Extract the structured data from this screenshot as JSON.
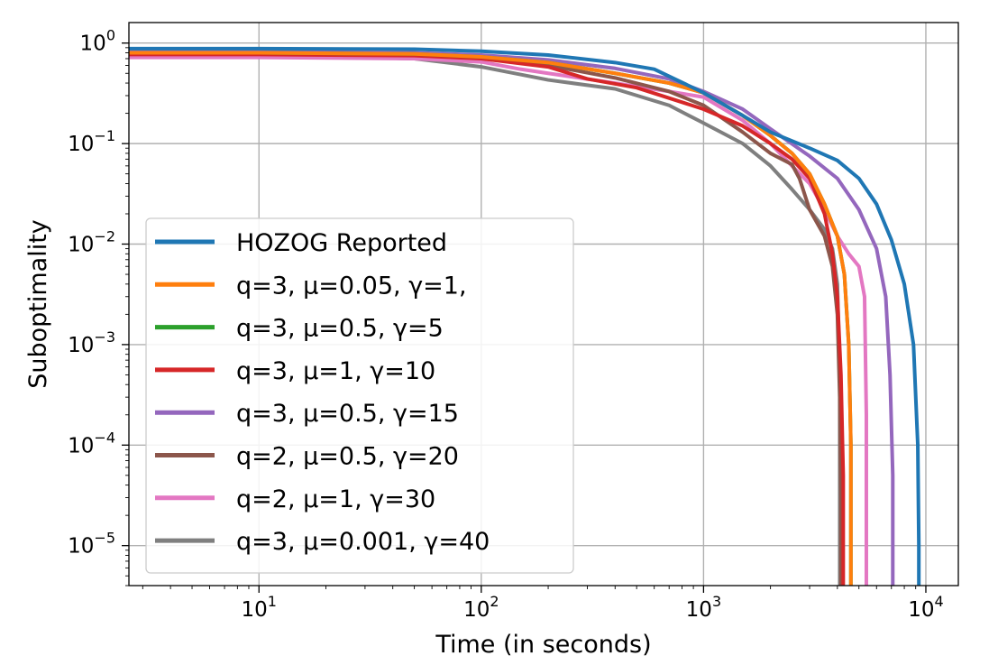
{
  "chart_data": {
    "type": "line",
    "xlabel": "Time (in seconds)",
    "ylabel": "Suboptimality",
    "x_scale": "log",
    "y_scale": "log",
    "xlim": [
      2.6,
      14000
    ],
    "ylim": [
      4e-06,
      1.6
    ],
    "grid": true,
    "legend_position": "lower-left",
    "x_ticks": [
      {
        "value": 10,
        "base": "10",
        "exp": "1"
      },
      {
        "value": 100,
        "base": "10",
        "exp": "2"
      },
      {
        "value": 1000,
        "base": "10",
        "exp": "3"
      },
      {
        "value": 10000,
        "base": "10",
        "exp": "4"
      }
    ],
    "y_ticks": [
      {
        "value": 1,
        "base": "10",
        "exp": "0"
      },
      {
        "value": 0.1,
        "base": "10",
        "exp": "−1"
      },
      {
        "value": 0.01,
        "base": "10",
        "exp": "−2"
      },
      {
        "value": 0.001,
        "base": "10",
        "exp": "−3"
      },
      {
        "value": 0.0001,
        "base": "10",
        "exp": "−4"
      },
      {
        "value": 1e-05,
        "base": "10",
        "exp": "−5"
      }
    ],
    "series": [
      {
        "name": "HOZOG Reported",
        "color": "#1f77b4",
        "x": [
          2.6,
          10,
          50,
          100,
          200,
          400,
          600,
          1000,
          1500,
          2000,
          3000,
          4000,
          5000,
          6000,
          7000,
          8000,
          8800,
          9200,
          9300,
          9300
        ],
        "y": [
          0.88,
          0.88,
          0.87,
          0.83,
          0.76,
          0.64,
          0.55,
          0.32,
          0.19,
          0.13,
          0.09,
          0.068,
          0.045,
          0.025,
          0.011,
          0.004,
          0.001,
          0.0001,
          1e-05,
          4e-06
        ]
      },
      {
        "name": "q=3, μ=0.05, γ=1,",
        "color": "#ff7f0e",
        "x": [
          2.6,
          10,
          50,
          100,
          200,
          400,
          700,
          1000,
          1500,
          2000,
          2500,
          3000,
          3500,
          4000,
          4300,
          4500,
          4600,
          4600
        ],
        "y": [
          0.8,
          0.8,
          0.78,
          0.73,
          0.64,
          0.5,
          0.4,
          0.32,
          0.19,
          0.12,
          0.08,
          0.05,
          0.025,
          0.012,
          0.005,
          0.001,
          0.0001,
          4e-06
        ]
      },
      {
        "name": "q=3, μ=0.5, γ=5",
        "color": "#2ca02c",
        "x": [
          2.6,
          10,
          50,
          100,
          200,
          400,
          700,
          1000,
          1500,
          2000,
          2500,
          3000,
          3500,
          4000,
          4300,
          4500,
          4600,
          4600
        ],
        "y": [
          0.8,
          0.8,
          0.78,
          0.73,
          0.64,
          0.5,
          0.4,
          0.32,
          0.19,
          0.12,
          0.08,
          0.05,
          0.025,
          0.012,
          0.005,
          0.001,
          0.0001,
          4e-06
        ]
      },
      {
        "name": "q=3, μ=1, γ=10",
        "color": "#d62728",
        "x": [
          2.6,
          10,
          50,
          100,
          200,
          300,
          500,
          1000,
          1500,
          2000,
          2500,
          3000,
          3500,
          3800,
          4000,
          4150,
          4250,
          4250
        ],
        "y": [
          0.77,
          0.77,
          0.75,
          0.7,
          0.58,
          0.44,
          0.36,
          0.22,
          0.15,
          0.1,
          0.07,
          0.045,
          0.02,
          0.008,
          0.003,
          0.0005,
          5e-05,
          4e-06
        ]
      },
      {
        "name": "q=3, μ=0.5, γ=15",
        "color": "#9467bd",
        "x": [
          2.6,
          10,
          50,
          100,
          200,
          400,
          700,
          1000,
          1500,
          2000,
          3000,
          4000,
          5000,
          6000,
          6600,
          6900,
          7100,
          7100
        ],
        "y": [
          0.82,
          0.82,
          0.8,
          0.76,
          0.68,
          0.56,
          0.44,
          0.33,
          0.22,
          0.14,
          0.075,
          0.045,
          0.022,
          0.009,
          0.003,
          0.0005,
          5e-05,
          4e-06
        ]
      },
      {
        "name": "q=2, μ=0.5, γ=20",
        "color": "#8c564b",
        "x": [
          2.6,
          10,
          50,
          100,
          200,
          400,
          700,
          1000,
          1500,
          2000,
          2500,
          2700,
          3000,
          3500,
          3800,
          4000,
          4100,
          4150,
          4150
        ],
        "y": [
          0.8,
          0.8,
          0.78,
          0.73,
          0.6,
          0.45,
          0.33,
          0.24,
          0.13,
          0.08,
          0.062,
          0.045,
          0.022,
          0.012,
          0.006,
          0.002,
          0.0003,
          3e-05,
          4e-06
        ]
      },
      {
        "name": "q=2, μ=1, γ=30",
        "color": "#e377c2",
        "x": [
          2.6,
          10,
          50,
          100,
          150,
          200,
          400,
          700,
          1000,
          1500,
          2000,
          2500,
          3000,
          3500,
          4000,
          4500,
          5000,
          5300,
          5400,
          5400
        ],
        "y": [
          0.72,
          0.72,
          0.7,
          0.65,
          0.55,
          0.5,
          0.4,
          0.33,
          0.29,
          0.17,
          0.1,
          0.06,
          0.04,
          0.022,
          0.012,
          0.008,
          0.006,
          0.003,
          0.0002,
          4e-06
        ]
      },
      {
        "name": "q=3, μ=0.001, γ=40",
        "color": "#7f7f7f",
        "x": [
          2.6,
          10,
          50,
          100,
          200,
          400,
          700,
          1000,
          1500,
          2000,
          2500,
          3000,
          3500,
          3800,
          4000,
          4100,
          4100
        ],
        "y": [
          0.76,
          0.76,
          0.7,
          0.58,
          0.43,
          0.35,
          0.24,
          0.16,
          0.1,
          0.06,
          0.035,
          0.022,
          0.014,
          0.009,
          0.004,
          0.0005,
          4e-06
        ]
      }
    ],
    "legend_order": [
      0,
      1,
      2,
      3,
      4,
      5,
      6,
      7
    ]
  }
}
